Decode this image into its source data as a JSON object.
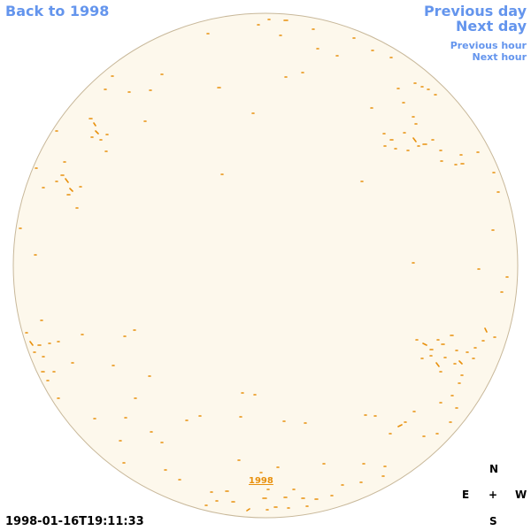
{
  "nav": {
    "back": "Back to 1998",
    "previous_day": "Previous day",
    "next_day": "Next day",
    "previous_hour": "Previous hour",
    "next_hour": "Next hour"
  },
  "map": {
    "year_link": "1998",
    "timestamp": "1998-01-16T19:11:33"
  },
  "compass": {
    "north": "N",
    "east": "E",
    "center": "+",
    "west": "W",
    "south": "S"
  }
}
